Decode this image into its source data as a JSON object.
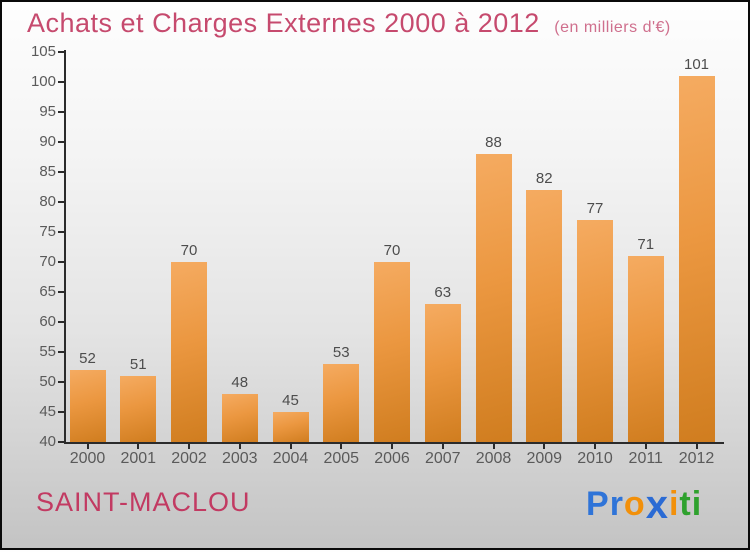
{
  "chart_data": {
    "type": "bar",
    "title": "Achats et Charges Externes 2000 à 2012",
    "subtitle": "(en milliers d'€)",
    "categories": [
      "2000",
      "2001",
      "2002",
      "2003",
      "2004",
      "2005",
      "2006",
      "2007",
      "2008",
      "2009",
      "2010",
      "2011",
      "2012"
    ],
    "values": [
      52,
      51,
      70,
      48,
      45,
      53,
      70,
      63,
      88,
      82,
      77,
      71,
      101
    ],
    "xlabel": "",
    "ylabel": "",
    "ylim": [
      40,
      105
    ],
    "ytick_step": 5,
    "grid": false,
    "legend": "none",
    "bar_color_light": "#f5ab61",
    "bar_color_dark": "#d07d1f"
  },
  "footer": {
    "company": "SAINT-MACLOU",
    "logo_letters": [
      {
        "char": "P",
        "color": "#2f74d8"
      },
      {
        "char": "r",
        "color": "#2f74d8"
      },
      {
        "char": "o",
        "color": "#f2900a"
      },
      {
        "char": "x",
        "color": "#2b6bd4"
      },
      {
        "char": "i",
        "color": "#f2900a"
      },
      {
        "char": "t",
        "color": "#2fa12e"
      },
      {
        "char": "i",
        "color": "#2fa12e"
      }
    ]
  },
  "colors": {
    "title_pink": "#c64a6e",
    "subtitle_pink": "#cf6f8d",
    "company_pink": "#c23a62",
    "axis": "#2b2b2b",
    "tick_text": "#5a5a5a",
    "value_text": "#4d4d4d"
  }
}
